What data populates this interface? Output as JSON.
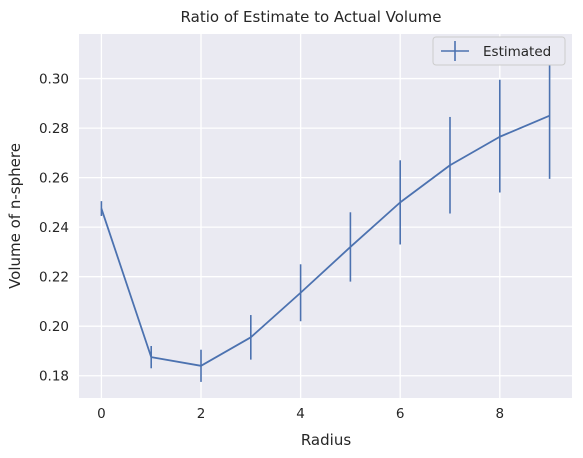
{
  "chart_data": {
    "type": "line",
    "title": "Ratio of Estimate to Actual Volume",
    "xlabel": "Radius",
    "ylabel": "Volume of n-sphere",
    "xlim": [
      -0.45,
      9.45
    ],
    "ylim": [
      0.171,
      0.318
    ],
    "xticks": [
      0,
      2,
      4,
      6,
      8
    ],
    "xtick_labels": [
      "0",
      "2",
      "4",
      "6",
      "8"
    ],
    "yticks": [
      0.18,
      0.2,
      0.22,
      0.24,
      0.26,
      0.28,
      0.3
    ],
    "ytick_labels": [
      "0.18",
      "0.20",
      "0.22",
      "0.24",
      "0.26",
      "0.28",
      "0.30"
    ],
    "grid": true,
    "legend_position": "top-right",
    "series": [
      {
        "name": "Estimated",
        "color": "#4c72b0",
        "x": [
          0,
          1,
          2,
          3,
          4,
          5,
          6,
          7,
          8,
          9
        ],
        "y": [
          0.2475,
          0.1875,
          0.184,
          0.1955,
          0.2135,
          0.232,
          0.25,
          0.265,
          0.2765,
          0.285
        ],
        "err_low": [
          0.2445,
          0.183,
          0.1775,
          0.1865,
          0.202,
          0.218,
          0.233,
          0.2455,
          0.254,
          0.2595
        ],
        "err_high": [
          0.2505,
          0.192,
          0.1905,
          0.2045,
          0.225,
          0.246,
          0.267,
          0.2845,
          0.2995,
          0.3105
        ]
      }
    ]
  }
}
